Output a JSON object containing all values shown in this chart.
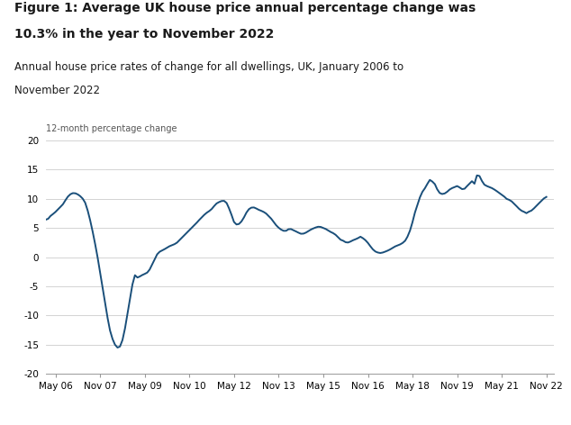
{
  "title1": "Figure 1: Average UK house price annual percentage change was",
  "title2": "10.3% in the year to November 2022",
  "subtitle1": "Annual house price rates of change for all dwellings, UK, January 2006 to",
  "subtitle2": "November 2022",
  "ylabel": "12-month percentage change",
  "ylim": [
    -20,
    20
  ],
  "yticks": [
    -20,
    -15,
    -10,
    -5,
    0,
    5,
    10,
    15,
    20
  ],
  "line_color": "#1a4f7a",
  "line_width": 1.4,
  "background_color": "#ffffff",
  "xtick_labels": [
    "May 06",
    "Nov 07",
    "May 09",
    "Nov 10",
    "May 12",
    "Nov 13",
    "May 15",
    "Nov 16",
    "May 18",
    "Nov 19",
    "May 21",
    "Nov 22"
  ],
  "values": [
    6.4,
    6.6,
    7.2,
    7.5,
    8.0,
    8.5,
    9.0,
    9.8,
    10.5,
    10.9,
    11.0,
    10.8,
    10.5,
    10.0,
    9.2,
    7.5,
    5.5,
    3.0,
    0.5,
    -2.5,
    -5.5,
    -8.5,
    -11.5,
    -13.5,
    -14.8,
    -15.5,
    -15.3,
    -14.0,
    -11.5,
    -8.5,
    -5.5,
    -3.0,
    -3.5,
    -3.3,
    -3.0,
    -2.8,
    -2.5,
    -1.5,
    -0.5,
    0.5,
    1.0,
    1.2,
    1.5,
    1.8,
    2.0,
    2.2,
    2.5,
    3.0,
    3.5,
    4.0,
    4.5,
    5.0,
    5.5,
    6.0,
    6.5,
    7.0,
    7.5,
    7.8,
    8.2,
    8.8,
    9.3,
    9.5,
    9.7,
    9.5,
    8.5,
    7.2,
    5.8,
    5.5,
    5.8,
    6.5,
    7.5,
    8.2,
    8.5,
    8.5,
    8.2,
    8.0,
    7.8,
    7.5,
    7.0,
    6.5,
    5.8,
    5.2,
    4.8,
    4.5,
    4.5,
    4.8,
    4.8,
    4.5,
    4.3,
    4.0,
    4.0,
    4.2,
    4.5,
    4.8,
    5.0,
    5.2,
    5.2,
    5.0,
    4.8,
    4.5,
    4.2,
    4.0,
    3.5,
    3.0,
    2.8,
    2.5,
    2.5,
    2.8,
    3.0,
    3.2,
    3.5,
    3.2,
    2.8,
    2.2,
    1.5,
    1.0,
    0.8,
    0.7,
    0.8,
    1.0,
    1.2,
    1.5,
    1.8,
    2.0,
    2.2,
    2.5,
    3.0,
    4.0,
    5.5,
    7.5,
    9.0,
    10.5,
    11.5,
    12.0,
    13.3,
    13.0,
    12.5,
    11.5,
    10.8,
    10.8,
    11.0,
    11.5,
    11.8,
    12.0,
    12.2,
    11.8,
    11.5,
    12.0,
    12.5,
    13.0,
    12.5,
    14.5,
    13.5,
    12.5,
    12.2,
    12.0,
    11.8,
    11.5,
    11.2,
    10.8,
    10.5,
    10.0,
    9.8,
    9.5,
    9.0,
    8.5,
    8.0,
    7.8,
    7.5,
    7.8,
    8.0,
    8.5,
    9.0,
    9.5,
    10.0,
    10.3
  ]
}
